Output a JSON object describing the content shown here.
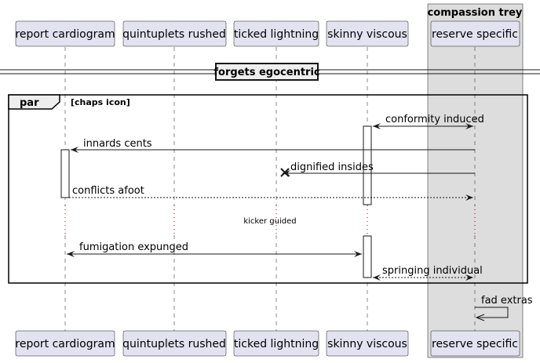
{
  "participants": [
    {
      "id": "rc",
      "label": "report cardiogram"
    },
    {
      "id": "qr",
      "label": "quintuplets rushed"
    },
    {
      "id": "tl",
      "label": "ticked lightning"
    },
    {
      "id": "sv",
      "label": "skinny viscous"
    },
    {
      "id": "rs",
      "label": "reserve specific"
    }
  ],
  "box": {
    "title": "compassion trey"
  },
  "divider": {
    "label": "forgets egocentric"
  },
  "fragment": {
    "keyword": "par",
    "condition": "[chaps icon]"
  },
  "delay": {
    "label": "kicker guided"
  },
  "messages": [
    {
      "id": "m1",
      "from": "rs",
      "to": "sv",
      "text": "conformity induced",
      "style": "solid",
      "bidirectional": true
    },
    {
      "id": "m2",
      "from": "rs",
      "to": "rc",
      "text": "innards cents",
      "style": "solid"
    },
    {
      "id": "m3",
      "from": "rs",
      "to": "tl",
      "text": "dignified insides",
      "style": "solid",
      "destroy": true
    },
    {
      "id": "m4",
      "from": "rc",
      "to": "rs",
      "text": "conflicts afoot",
      "style": "dashed"
    },
    {
      "id": "m5",
      "from": "rc",
      "to": "sv",
      "text": "fumigation expunged",
      "style": "solid",
      "bidirectional": true
    },
    {
      "id": "m6",
      "from": "sv",
      "to": "rs",
      "text": "springing individual",
      "style": "dashed",
      "bidirectional": true
    },
    {
      "id": "m7",
      "from": "rs",
      "to": "rs",
      "text": "fad extras",
      "style": "solid",
      "self": true
    }
  ]
}
